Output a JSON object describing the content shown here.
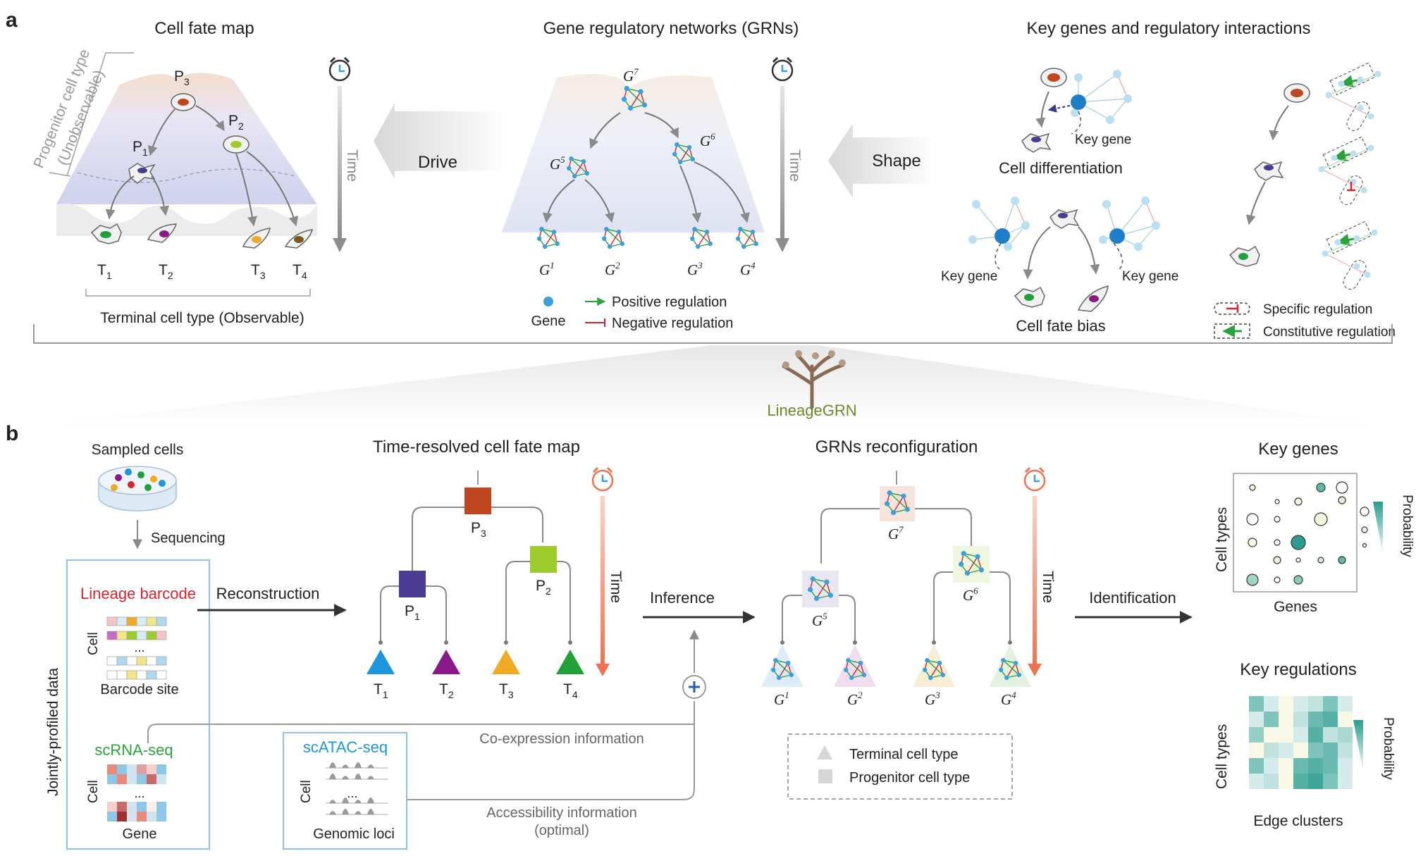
{
  "panel_a": {
    "label": "a",
    "fate_map": {
      "title": "Cell fate map",
      "progenitor_label_1": "Progenitor cell type",
      "progenitor_label_2": "(Unobservable)",
      "nodes": [
        "P",
        "P",
        "P"
      ],
      "node_subs": [
        "3",
        "2",
        "1"
      ],
      "terminals": [
        "T",
        "T",
        "T",
        "T"
      ],
      "terminal_subs": [
        "1",
        "2",
        "3",
        "4"
      ],
      "terminal_caption": "Terminal cell type (Observable)",
      "time": "Time"
    },
    "drive": "Drive",
    "grn": {
      "title": "Gene regulatory networks (GRNs)",
      "g": "G",
      "g_sups": [
        "7",
        "5",
        "6",
        "1",
        "2",
        "3",
        "4"
      ],
      "time": "Time",
      "legend_gene": "Gene",
      "legend_positive": "Positive regulation",
      "legend_negative": "Negative regulation"
    },
    "shape": "Shape",
    "key": {
      "title": "Key genes and regulatory interactions",
      "key_gene": "Key gene",
      "cell_diff": "Cell differentiation",
      "key_gene_left": "Key gene",
      "key_gene_right": "Key gene",
      "cell_fate_bias": "Cell fate bias",
      "specific": "Specific regulation",
      "constitutive": "Constitutive regulation"
    }
  },
  "logo": {
    "part1": "Lineage",
    "part2": "GRN"
  },
  "panel_b": {
    "label": "b",
    "sampled_cells": "Sampled cells",
    "sequencing": "Sequencing",
    "jointly": "Jointly-profiled data",
    "lineage_barcode": "Lineage barcode",
    "cell": "Cell",
    "barcode_site": "Barcode site",
    "ellipsis": "...",
    "scrna": "scRNA-seq",
    "gene": "Gene",
    "scatac": "scATAC-seq",
    "genomic_loci": "Genomic loci",
    "reconstruction": "Reconstruction",
    "time_resolved_title": "Time-resolved cell fate map",
    "p_nodes": [
      "P",
      "P",
      "P"
    ],
    "p_subs": [
      "3",
      "1",
      "2"
    ],
    "t_nodes": [
      "T",
      "T",
      "T",
      "T"
    ],
    "t_subs": [
      "1",
      "2",
      "3",
      "4"
    ],
    "time": "Time",
    "inference": "Inference",
    "coexpression": "Co-expression information",
    "accessibility_1": "Accessibility information",
    "accessibility_2": "(optimal)",
    "grn_title": "GRNs reconfiguration",
    "g": "G",
    "g_sups": [
      "7",
      "5",
      "6",
      "1",
      "2",
      "3",
      "4"
    ],
    "legend_terminal": "Terminal cell type",
    "legend_progenitor": "Progenitor cell type",
    "identification": "Identification",
    "key_genes_title": "Key genes",
    "cell_types": "Cell types",
    "genes": "Genes",
    "probability": "Probability",
    "key_reg_title": "Key regulations",
    "edge_clusters": "Edge clusters"
  },
  "colors": {
    "blue_node": "#3aa0dc",
    "pos": "#2aa43a",
    "neg": "#d8242a",
    "p3": "#c0461f",
    "p1": "#4b3b93",
    "p2": "#9ccc2c",
    "t1": "#1e96dc",
    "t2": "#8a1a8a",
    "t3": "#f0aa24",
    "t4": "#22a03a",
    "lineage_red": "#d8242a",
    "scrna_green": "#2aa43a",
    "scatac_blue": "#1e96dc",
    "orange_time": "#ee7350",
    "teal": "#2a9d8f"
  }
}
